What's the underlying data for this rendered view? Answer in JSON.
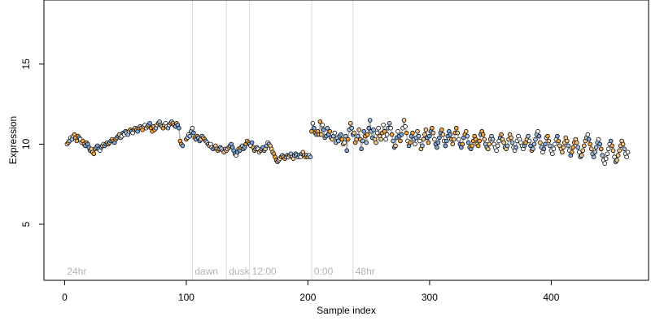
{
  "chart_data": {
    "type": "scatter",
    "title": "",
    "xlabel": "Sample index",
    "ylabel": "Expression",
    "xlim": [
      -17,
      480
    ],
    "ylim": [
      1.5,
      19
    ],
    "xticks": [
      0,
      100,
      200,
      300,
      400
    ],
    "yticks": [
      5,
      10,
      15
    ],
    "grid": false,
    "period_markers": [
      {
        "label": "24hr",
        "x": 0
      },
      {
        "label": "dawn",
        "x": 105
      },
      {
        "label": "dusk",
        "x": 133
      },
      {
        "label": "12:00",
        "x": 152
      },
      {
        "label": "0:00",
        "x": 203
      },
      {
        "label": "48hr",
        "x": 237
      }
    ],
    "colors": {
      "line": "#b3b3b3",
      "fills": [
        "#ffffff",
        "#a6c4e8",
        "#f7c98a",
        "#f4a742",
        "#7fa7d9"
      ]
    },
    "series": [
      {
        "segment": "0-100",
        "x_start": 2,
        "x_step": 1,
        "y": [
          10.0,
          10.1,
          10.2,
          10.4,
          10.3,
          10.5,
          10.6,
          10.4,
          10.2,
          10.5,
          10.4,
          10.3,
          10.1,
          10.2,
          10.0,
          9.9,
          10.1,
          10.0,
          9.8,
          9.6,
          9.7,
          9.5,
          9.4,
          9.7,
          9.8,
          9.9,
          9.7,
          9.6,
          9.8,
          9.9,
          10.0,
          9.9,
          10.0,
          10.1,
          10.0,
          10.1,
          10.2,
          10.3,
          10.2,
          10.1,
          10.3,
          10.4,
          10.5,
          10.6,
          10.4,
          10.5,
          10.7,
          10.6,
          10.8,
          10.7,
          10.6,
          10.8,
          10.9,
          10.8,
          10.7,
          10.9,
          11.0,
          10.9,
          10.8,
          11.0,
          11.1,
          11.0,
          10.9,
          11.1,
          11.2,
          11.0,
          11.1,
          11.2,
          11.3,
          11.0,
          10.8,
          11.1,
          10.9,
          11.0,
          11.2,
          11.3,
          11.4,
          11.2,
          11.1,
          11.0,
          11.2,
          11.3,
          11.1,
          11.0,
          11.2,
          11.3,
          11.4,
          11.3,
          11.2,
          11.1,
          11.3,
          11.2,
          11.0,
          10.2,
          10.0,
          9.9
        ]
      },
      {
        "segment": "100-203",
        "x_start": 100,
        "x_step": 1,
        "y": [
          10.3,
          10.4,
          10.6,
          10.5,
          10.8,
          11.0,
          10.7,
          10.4,
          10.3,
          10.5,
          10.4,
          10.2,
          10.3,
          10.5,
          10.4,
          10.3,
          10.2,
          10.1,
          10.0,
          9.9,
          10.0,
          9.8,
          9.7,
          9.8,
          9.9,
          9.7,
          9.6,
          9.7,
          9.8,
          9.7,
          9.6,
          9.5,
          9.7,
          9.6,
          9.7,
          9.8,
          9.9,
          10.0,
          9.8,
          9.6,
          9.4,
          9.3,
          9.5,
          9.7,
          9.6,
          9.8,
          9.9,
          9.7,
          9.8,
          10.0,
          10.2,
          10.1,
          10.0,
          9.9,
          10.1,
          9.8,
          9.6,
          9.7,
          9.8,
          9.7,
          9.5,
          9.6,
          9.7,
          9.8,
          9.6,
          9.7,
          9.9,
          10.1,
          10.0,
          9.9,
          9.7,
          9.5,
          9.4,
          9.2,
          9.0,
          8.9,
          9.0,
          9.1,
          9.2,
          9.3,
          9.2,
          9.1,
          9.2,
          9.3,
          9.2,
          9.3,
          9.4,
          9.2,
          9.1,
          9.3,
          9.4,
          9.3,
          9.2,
          9.3,
          9.2,
          9.4,
          9.5,
          9.3,
          9.2,
          9.3,
          9.2,
          9.3,
          9.2
        ]
      },
      {
        "segment": "203-460",
        "x_start": 203,
        "x_step": 1,
        "y": [
          10.8,
          11.3,
          11.0,
          10.7,
          10.6,
          10.8,
          10.6,
          11.4,
          10.6,
          11.2,
          10.9,
          10.4,
          10.5,
          11.0,
          10.6,
          10.8,
          10.4,
          10.3,
          10.5,
          10.7,
          10.1,
          10.4,
          10.2,
          10.5,
          10.6,
          10.3,
          10.0,
          10.1,
          10.5,
          9.6,
          10.3,
          10.9,
          11.3,
          11.0,
          10.6,
          10.7,
          10.1,
          10.3,
          10.5,
          10.9,
          10.3,
          9.7,
          10.2,
          10.8,
          10.5,
          10.1,
          10.6,
          11.0,
          11.5,
          10.8,
          10.4,
          10.9,
          10.3,
          10.1,
          10.7,
          11.0,
          10.5,
          10.3,
          10.7,
          11.2,
          10.8,
          10.3,
          10.6,
          11.0,
          11.3,
          11.0,
          10.6,
          10.2,
          9.8,
          9.9,
          10.4,
          10.8,
          10.5,
          10.2,
          10.6,
          11.0,
          11.5,
          11.1,
          10.7,
          10.2,
          9.9,
          10.1,
          10.5,
          10.7,
          10.3,
          10.0,
          10.4,
          10.8,
          10.5,
          10.2,
          9.7,
          9.9,
          10.3,
          10.6,
          10.9,
          10.4,
          10.1,
          10.5,
          10.8,
          11.0,
          10.7,
          10.3,
          10.0,
          9.8,
          10.1,
          10.4,
          10.7,
          10.9,
          10.6,
          10.2,
          9.9,
          10.2,
          10.5,
          10.8,
          10.6,
          10.3,
          10.0,
          10.3,
          10.7,
          11.0,
          10.7,
          10.3,
          10.0,
          9.8,
          10.0,
          10.4,
          10.6,
          10.8,
          10.5,
          10.1,
          9.8,
          9.7,
          9.9,
          10.2,
          10.5,
          10.3,
          10.0,
          9.9,
          10.2,
          10.6,
          10.8,
          10.6,
          10.3,
          10.0,
          9.8,
          9.7,
          10.0,
          10.3,
          10.5,
          10.3,
          10.0,
          9.8,
          9.6,
          9.9,
          10.2,
          10.4,
          10.6,
          10.3,
          10.1,
          9.8,
          9.7,
          9.9,
          10.3,
          10.6,
          10.4,
          10.1,
          9.8,
          9.6,
          9.8,
          10.2,
          10.5,
          10.3,
          10.1,
          9.9,
          9.7,
          9.9,
          10.1,
          10.3,
          10.5,
          10.2,
          9.9,
          9.6,
          9.7,
          10.0,
          10.3,
          10.6,
          10.8,
          10.5,
          10.1,
          9.8,
          9.5,
          9.7,
          10.0,
          10.4,
          10.5,
          10.2,
          9.9,
          9.6,
          9.4,
          9.7,
          10.0,
          10.3,
          10.5,
          10.2,
          9.9,
          9.7,
          9.5,
          9.8,
          10.1,
          10.4,
          10.2,
          9.9,
          9.6,
          9.3,
          9.5,
          9.8,
          10.1,
          10.3,
          10.1,
          9.8,
          9.5,
          9.2,
          9.3,
          9.6,
          9.9,
          10.2,
          10.4,
          10.6,
          10.3,
          10.0,
          9.7,
          9.4,
          9.2,
          9.5,
          9.8,
          10.1,
          10.3,
          10.0,
          9.7,
          9.3,
          9.0,
          8.8,
          9.1,
          9.4,
          9.7,
          10.0,
          10.2,
          9.9,
          9.6,
          9.2,
          8.9,
          9.0,
          9.3,
          9.6,
          9.9,
          10.2,
          10.0,
          9.7,
          9.4,
          9.2,
          9.5
        ]
      }
    ]
  }
}
